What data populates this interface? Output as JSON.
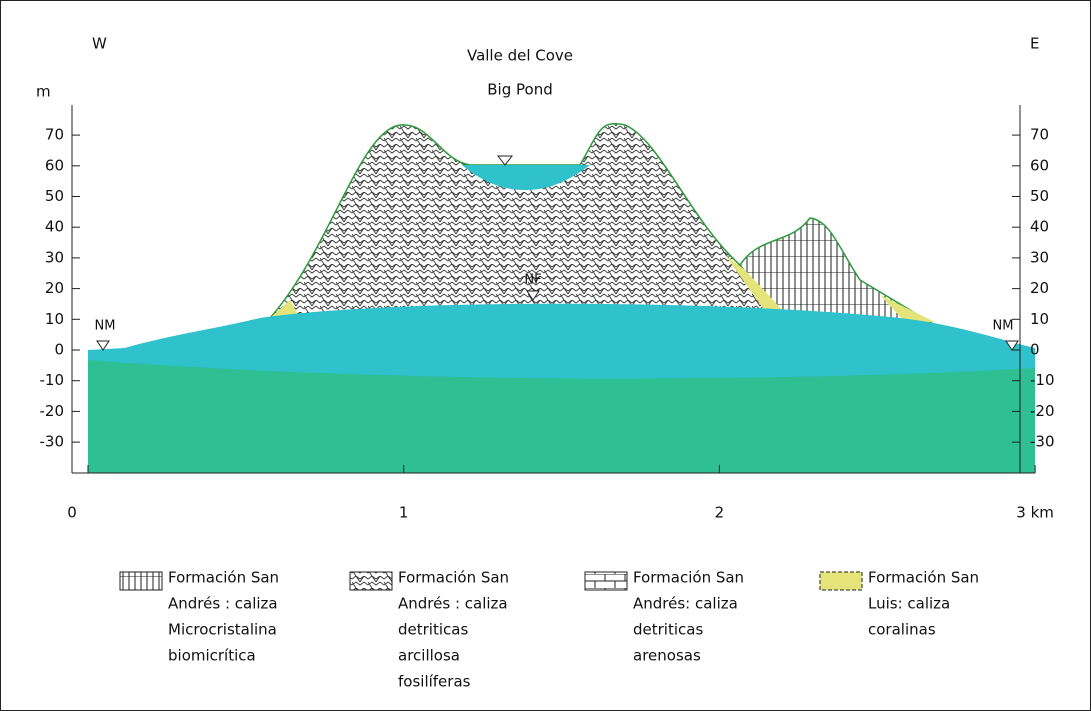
{
  "header": {
    "west": "W",
    "east": "E",
    "title": "Valle del Cove",
    "subtitle": "Big Pond",
    "unit": "m"
  },
  "y_axis": {
    "ticks": [
      70,
      60,
      50,
      40,
      30,
      20,
      10,
      0,
      -10,
      -20,
      -30
    ]
  },
  "x_axis": {
    "ticks": [
      0,
      1,
      2,
      {
        "value": 3,
        "label": "3 km"
      }
    ]
  },
  "markers": {
    "nm_left": "NM",
    "nm_right": "NM",
    "nf": "NF"
  },
  "legend": [
    {
      "lines": [
        "Formación San",
        "Andrés : caliza",
        "Microcristalina",
        "biomicrítica"
      ]
    },
    {
      "lines": [
        "Formación San",
        "Andrés : caliza",
        "detriticas",
        "arcillosa",
        "fosilíferas"
      ]
    },
    {
      "lines": [
        "Formación San",
        "Andrés: caliza",
        "detriticas",
        "arenosas"
      ]
    },
    {
      "lines": [
        "Formación San",
        "Luis: caliza",
        "coralinas"
      ]
    }
  ]
}
